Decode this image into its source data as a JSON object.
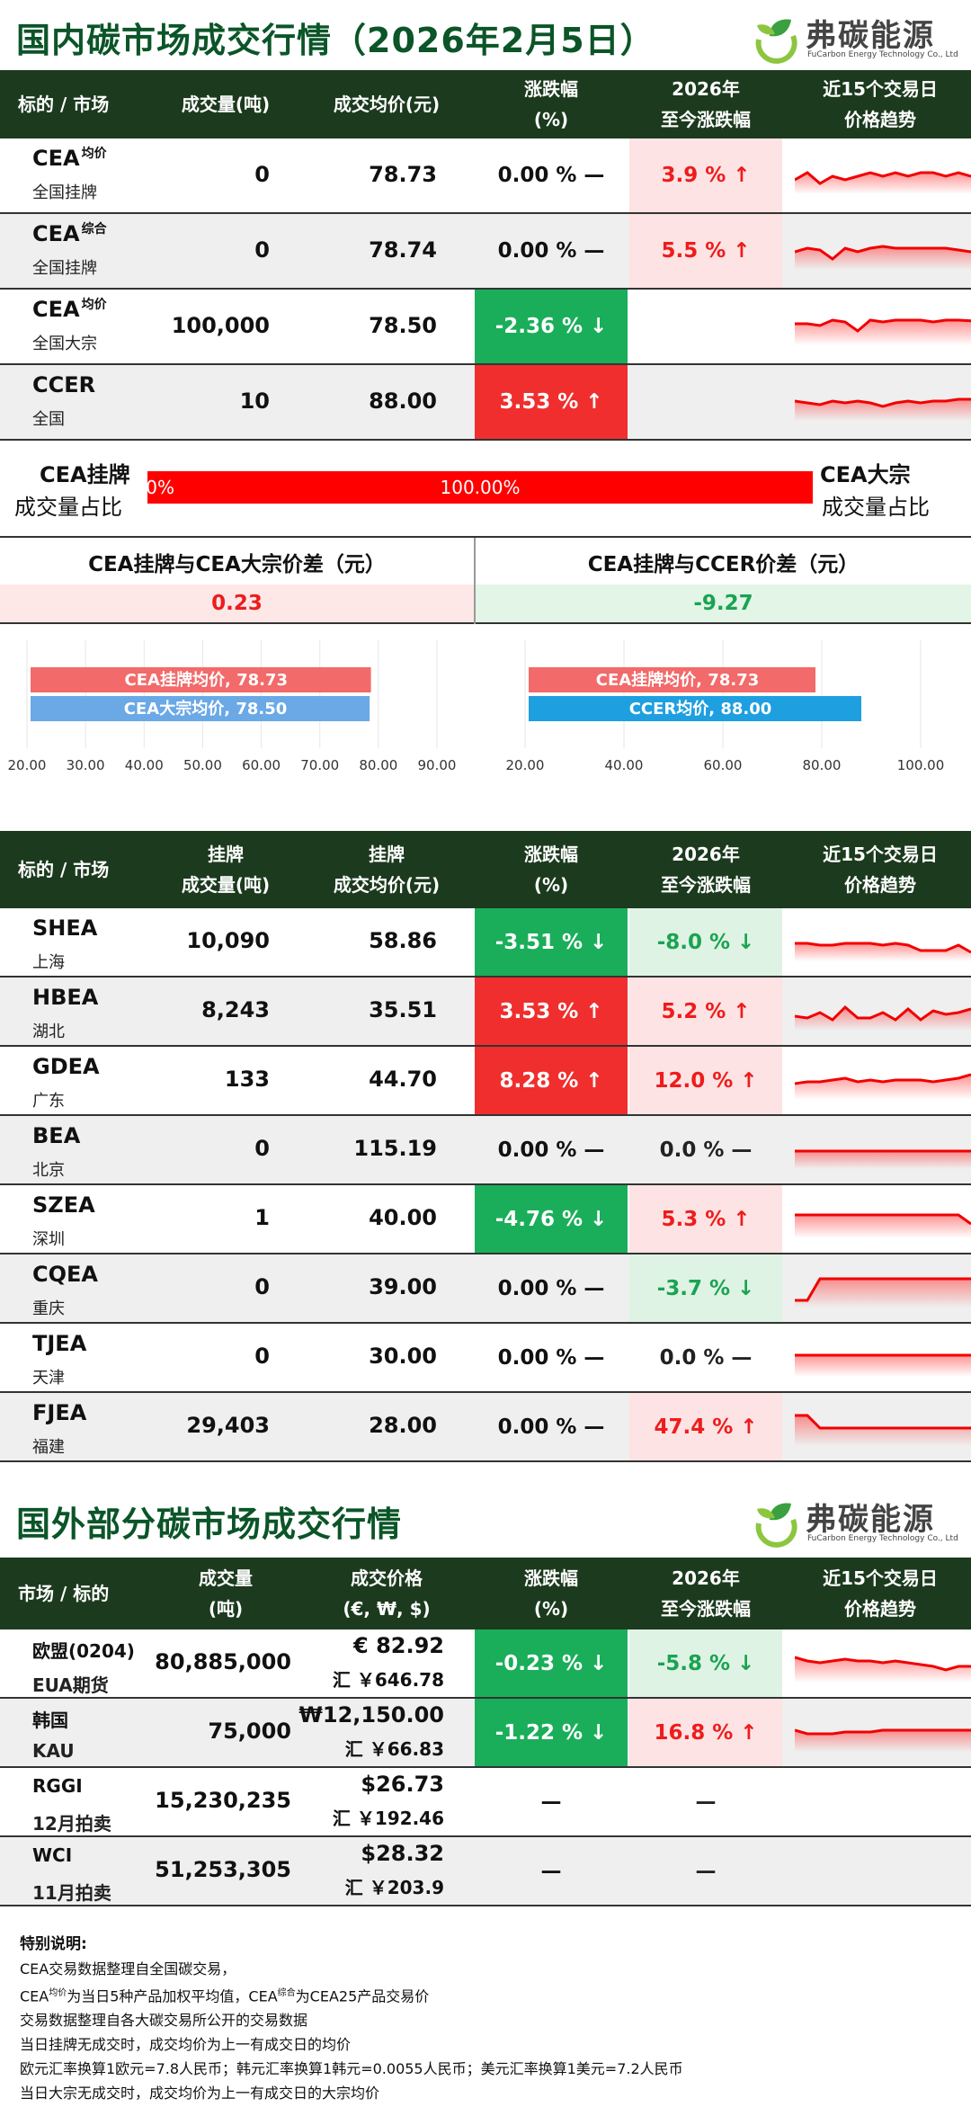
{
  "domestic": {
    "title": "国内碳市场成交行情（2026年2月5日）",
    "headers": [
      "标的 / 市场",
      "成交量(吨)",
      "成交均价(元)",
      "涨跌幅\n(%)",
      "2026年\n至今涨跌幅",
      "近15个交易日\n价格趋势"
    ],
    "rows": [
      {
        "name": "CEA",
        "sup": "均价",
        "sub": "全国挂牌",
        "volume": "0",
        "price": "78.73",
        "change": "0.00 % —",
        "ytd": "3.9 % ↑",
        "change_dir": "flat",
        "ytd_dir": "up",
        "trend": [
          0.4,
          0.6,
          0.3,
          0.5,
          0.4,
          0.5,
          0.6,
          0.5,
          0.6,
          0.5,
          0.6,
          0.6,
          0.5,
          0.6,
          0.5
        ]
      },
      {
        "name": "CEA",
        "sup": "综合",
        "sub": "全国挂牌",
        "volume": "0",
        "price": "78.74",
        "change": "0.00 % —",
        "ytd": "5.5 % ↑",
        "change_dir": "flat",
        "ytd_dir": "up",
        "trend": [
          0.5,
          0.6,
          0.55,
          0.3,
          0.6,
          0.5,
          0.6,
          0.65,
          0.6,
          0.6,
          0.6,
          0.6,
          0.6,
          0.55,
          0.5
        ]
      },
      {
        "name": "CEA",
        "sup": "均价",
        "sub": "全国大宗",
        "volume": "100,000",
        "price": "78.50",
        "change": "-2.36 % ↓",
        "ytd": "",
        "change_dir": "down",
        "ytd_dir": "none",
        "trend": [
          0.6,
          0.6,
          0.55,
          0.7,
          0.65,
          0.4,
          0.7,
          0.65,
          0.7,
          0.7,
          0.7,
          0.65,
          0.7,
          0.7,
          0.68
        ]
      },
      {
        "name": "CCER",
        "sup": "",
        "sub": "全国",
        "volume": "10",
        "price": "88.00",
        "change": "3.53 % ↑",
        "ytd": "",
        "change_dir": "up",
        "ytd_dir": "none",
        "trend": [
          0.55,
          0.5,
          0.45,
          0.55,
          0.5,
          0.55,
          0.5,
          0.4,
          0.5,
          0.55,
          0.5,
          0.55,
          0.55,
          0.6,
          0.6
        ]
      }
    ]
  },
  "share": {
    "left_title": "CEA挂牌",
    "left_sub": "成交量占比",
    "right_title": "CEA大宗",
    "right_sub": "成交量占比",
    "left_label": "0.00%",
    "right_label": "100.00%",
    "left_fraction": 0.0
  },
  "diff": {
    "left_title": "CEA挂牌与CEA大宗价差（元）",
    "left_value": "0.23",
    "right_title": "CEA挂牌与CCER价差（元）",
    "right_value": "-9.27"
  },
  "chart_data": [
    {
      "type": "bar",
      "categories": [
        "CEA挂牌均价",
        "CEA大宗均价"
      ],
      "values": [
        78.73,
        78.5
      ],
      "labels": [
        "CEA挂牌均价, 78.73",
        "CEA大宗均价, 78.50"
      ],
      "xlim": [
        20,
        90
      ],
      "xticks": [
        "20.00",
        "30.00",
        "40.00",
        "50.00",
        "60.00",
        "70.00",
        "80.00",
        "90.00"
      ],
      "colors": [
        "#f26a6a",
        "#6aa8e6"
      ]
    },
    {
      "type": "bar",
      "categories": [
        "CEA挂牌均价",
        "CCER均价"
      ],
      "values": [
        78.73,
        88.0
      ],
      "labels": [
        "CEA挂牌均价, 78.73",
        "CCER均价, 88.00"
      ],
      "xlim": [
        20,
        100
      ],
      "xticks": [
        "20.00",
        "40.00",
        "60.00",
        "80.00",
        "100.00"
      ],
      "colors": [
        "#f26a6a",
        "#1e9fe0"
      ]
    }
  ],
  "regional": {
    "headers": [
      "标的 / 市场",
      "挂牌\n成交量(吨)",
      "挂牌\n成交均价(元)",
      "涨跌幅\n(%)",
      "2026年\n至今涨跌幅",
      "近15个交易日\n价格趋势"
    ],
    "rows": [
      {
        "name": "SHEA",
        "sub": "上海",
        "volume": "10,090",
        "price": "58.86",
        "change": "-3.51 % ↓",
        "ytd": "-8.0 % ↓",
        "change_dir": "down",
        "ytd_dir": "down",
        "trend": [
          0.5,
          0.5,
          0.45,
          0.45,
          0.5,
          0.5,
          0.5,
          0.45,
          0.5,
          0.45,
          0.3,
          0.3,
          0.3,
          0.45,
          0.25
        ]
      },
      {
        "name": "HBEA",
        "sub": "湖北",
        "volume": "8,243",
        "price": "35.51",
        "change": "3.53 % ↑",
        "ytd": "5.2 % ↑",
        "change_dir": "up",
        "ytd_dir": "up",
        "trend": [
          0.4,
          0.35,
          0.5,
          0.3,
          0.65,
          0.35,
          0.35,
          0.5,
          0.3,
          0.6,
          0.3,
          0.55,
          0.45,
          0.5,
          0.6
        ]
      },
      {
        "name": "GDEA",
        "sub": "广东",
        "volume": "133",
        "price": "44.70",
        "change": "8.28 % ↑",
        "ytd": "12.0 % ↑",
        "change_dir": "up",
        "ytd_dir": "up",
        "trend": [
          0.45,
          0.5,
          0.5,
          0.55,
          0.6,
          0.5,
          0.55,
          0.5,
          0.55,
          0.55,
          0.55,
          0.5,
          0.55,
          0.6,
          0.7
        ]
      },
      {
        "name": "BEA",
        "sub": "北京",
        "volume": "0",
        "price": "115.19",
        "change": "0.00 % —",
        "ytd": "0.0 % —",
        "change_dir": "flat",
        "ytd_dir": "flat",
        "trend": [
          0.5,
          0.5,
          0.5,
          0.5,
          0.5,
          0.5,
          0.5,
          0.5,
          0.5,
          0.5,
          0.5,
          0.5,
          0.5,
          0.5,
          0.5
        ]
      },
      {
        "name": "SZEA",
        "sub": "深圳",
        "volume": "1",
        "price": "40.00",
        "change": "-4.76 % ↓",
        "ytd": "5.3 % ↑",
        "change_dir": "down",
        "ytd_dir": "up",
        "trend": [
          0.65,
          0.65,
          0.65,
          0.65,
          0.65,
          0.65,
          0.65,
          0.65,
          0.65,
          0.65,
          0.65,
          0.65,
          0.65,
          0.65,
          0.4
        ]
      },
      {
        "name": "CQEA",
        "sub": "重庆",
        "volume": "0",
        "price": "39.00",
        "change": "0.00 % —",
        "ytd": "-3.7 % ↓",
        "change_dir": "flat",
        "ytd_dir": "down",
        "trend": [
          0.2,
          0.2,
          0.8,
          0.8,
          0.8,
          0.8,
          0.8,
          0.8,
          0.8,
          0.8,
          0.8,
          0.8,
          0.8,
          0.8,
          0.8
        ]
      },
      {
        "name": "TJEA",
        "sub": "天津",
        "volume": "0",
        "price": "30.00",
        "change": "0.00 % —",
        "ytd": "0.0 % —",
        "change_dir": "flat",
        "ytd_dir": "flat",
        "trend": [
          0.6,
          0.6,
          0.6,
          0.6,
          0.6,
          0.6,
          0.6,
          0.6,
          0.6,
          0.6,
          0.6,
          0.6,
          0.6,
          0.6,
          0.6
        ]
      },
      {
        "name": "FJEA",
        "sub": "福建",
        "volume": "29,403",
        "price": "28.00",
        "change": "0.00 % —",
        "ytd": "47.4 % ↑",
        "change_dir": "flat",
        "ytd_dir": "up",
        "trend": [
          0.85,
          0.85,
          0.5,
          0.5,
          0.5,
          0.5,
          0.5,
          0.5,
          0.5,
          0.5,
          0.5,
          0.5,
          0.5,
          0.5,
          0.5
        ]
      }
    ]
  },
  "foreign": {
    "title": "国外部分碳市场成交行情",
    "headers": [
      "市场 / 标的",
      "成交量\n(吨)",
      "成交价格\n(€, ₩, $)",
      "涨跌幅\n(%)",
      "2026年\n至今涨跌幅",
      "近15个交易日\n价格趋势"
    ],
    "rows": [
      {
        "name": "欧盟(0204)",
        "sub": "EUA期货",
        "volume": "80,885,000",
        "price": "€ 82.92",
        "rmb": "汇 ￥646.78",
        "change": "-0.23 % ↓",
        "ytd": "-5.8 % ↓",
        "change_dir": "down",
        "ytd_dir": "down",
        "trend": [
          0.7,
          0.6,
          0.55,
          0.6,
          0.65,
          0.6,
          0.6,
          0.55,
          0.6,
          0.55,
          0.5,
          0.45,
          0.35,
          0.45,
          0.45
        ]
      },
      {
        "name": "韩国",
        "sub": "KAU",
        "volume": "75,000",
        "price": "₩12,150.00",
        "rmb": "汇 ￥66.83",
        "change": "-1.22 % ↓",
        "ytd": "16.8 % ↑",
        "change_dir": "down",
        "ytd_dir": "up",
        "trend": [
          0.6,
          0.5,
          0.5,
          0.5,
          0.55,
          0.55,
          0.55,
          0.6,
          0.6,
          0.6,
          0.6,
          0.6,
          0.6,
          0.6,
          0.6
        ]
      },
      {
        "name": "RGGI",
        "sub": "12月拍卖",
        "volume": "15,230,235",
        "price": "$26.73",
        "rmb": "汇 ￥192.46",
        "change": "—",
        "ytd": "—",
        "change_dir": "flat",
        "ytd_dir": "flat",
        "trend": []
      },
      {
        "name": "WCI",
        "sub": "11月拍卖",
        "volume": "51,253,305",
        "price": "$28.32",
        "rmb": "汇 ￥203.9",
        "change": "—",
        "ytd": "—",
        "change_dir": "flat",
        "ytd_dir": "flat",
        "trend": []
      }
    ]
  },
  "logo": {
    "cn": "弗碳能源",
    "en": "FuCarbon Energy Technology Co., Ltd"
  },
  "notes": {
    "title": "特别说明:",
    "l1": "CEA交易数据整理自全国碳交易，",
    "l2a": "CEA",
    "l2sup": "均价",
    "l2b": "为当日5种产品加权平均值，CEA",
    "l2sup2": "综合",
    "l2c": "为CEA25产品交易价",
    "l3": "交易数据整理自各大碳交易所公开的交易数据",
    "l4": "当日挂牌无成交时，成交均价为上一有成交日的均价",
    "l5": "欧元汇率换算1欧元=7.8人民币；韩元汇率换算1韩元=0.0055人民币；美元汇率换算1美元=7.2人民币",
    "l6": "当日大宗无成交时，成交均价为上一有成交日的大宗均价"
  }
}
